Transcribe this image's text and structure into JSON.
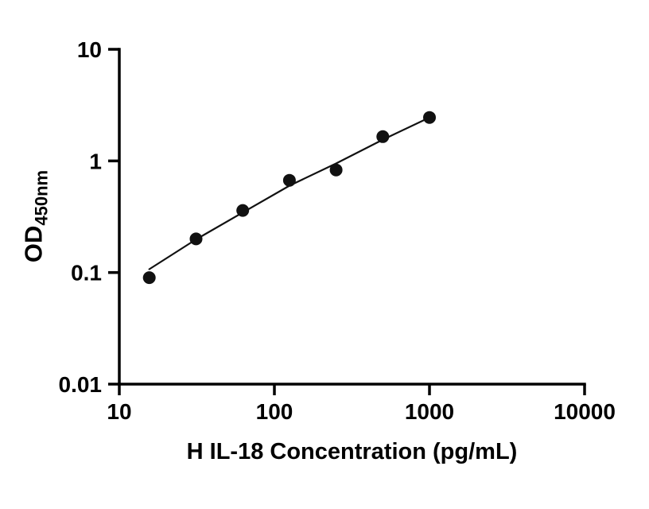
{
  "chart_data": {
    "type": "scatter",
    "title": "",
    "xlabel": "H IL-18 Concentration (pg/mL)",
    "ylabel_main": "OD",
    "ylabel_sub": "450nm",
    "x_scale": "log",
    "y_scale": "log",
    "xlim": [
      10,
      10000
    ],
    "ylim": [
      0.01,
      10
    ],
    "x_ticks": [
      10,
      100,
      1000,
      10000
    ],
    "x_tick_labels": [
      "10",
      "100",
      "1000",
      "10000"
    ],
    "y_ticks": [
      0.01,
      0.1,
      1,
      10
    ],
    "y_tick_labels": [
      "0.01",
      "0.1",
      "1",
      "10"
    ],
    "grid": false,
    "legend": "none",
    "series": [
      {
        "name": "fit-line",
        "type": "line",
        "x": [
          15.6,
          31.25,
          62.5,
          125,
          250,
          500,
          1000
        ],
        "y": [
          0.107,
          0.198,
          0.345,
          0.6,
          0.95,
          1.55,
          2.45
        ]
      },
      {
        "name": "standard-points",
        "type": "scatter",
        "x": [
          15.6,
          31.25,
          62.5,
          125,
          250,
          500,
          1000
        ],
        "y": [
          0.09,
          0.2,
          0.36,
          0.67,
          0.83,
          1.65,
          2.45
        ]
      }
    ],
    "colors": {
      "points": "#111111",
      "line": "#111111",
      "axis": "#000000",
      "background": "#ffffff"
    }
  }
}
